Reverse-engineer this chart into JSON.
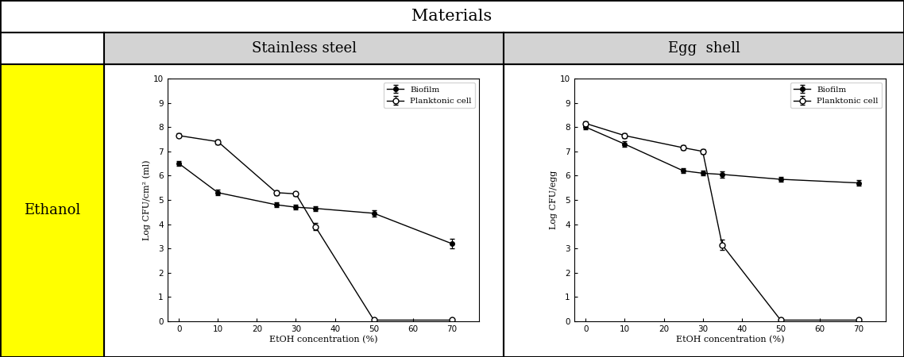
{
  "title": "Materials",
  "col1_header": "Stainless steel",
  "col2_header": "Egg  shell",
  "row_header": "Ethanol",
  "ss_biofilm_x": [
    0,
    10,
    25,
    30,
    35,
    50,
    70
  ],
  "ss_biofilm_y": [
    6.5,
    5.3,
    4.8,
    4.7,
    4.65,
    4.45,
    3.2
  ],
  "ss_biofilm_err": [
    0.1,
    0.12,
    0.1,
    0.1,
    0.1,
    0.12,
    0.2
  ],
  "ss_planktonic_x": [
    0,
    10,
    25,
    30,
    35,
    50,
    70
  ],
  "ss_planktonic_y": [
    7.65,
    7.4,
    5.3,
    5.25,
    3.9,
    0.05,
    0.05
  ],
  "ss_planktonic_err": [
    0.08,
    0.1,
    0.1,
    0.08,
    0.15,
    0.05,
    0.05
  ],
  "ss_ylabel": "Log CFU/cm² (ml)",
  "es_biofilm_x": [
    0,
    10,
    25,
    30,
    35,
    50,
    70
  ],
  "es_biofilm_y": [
    8.0,
    7.3,
    6.2,
    6.1,
    6.05,
    5.85,
    5.7
  ],
  "es_biofilm_err": [
    0.1,
    0.12,
    0.1,
    0.1,
    0.12,
    0.1,
    0.12
  ],
  "es_planktonic_x": [
    0,
    10,
    25,
    30,
    35,
    50,
    70
  ],
  "es_planktonic_y": [
    8.15,
    7.65,
    7.15,
    7.0,
    3.15,
    0.05,
    0.05
  ],
  "es_planktonic_err": [
    0.08,
    0.1,
    0.1,
    0.1,
    0.2,
    0.05,
    0.05
  ],
  "es_ylabel": "Log CFU/egg",
  "xlabel": "EtOH concentration (%)",
  "ylim": [
    0,
    10
  ],
  "yticks": [
    0,
    1,
    2,
    3,
    4,
    5,
    6,
    7,
    8,
    9,
    10
  ],
  "xticks": [
    0,
    10,
    20,
    30,
    40,
    50,
    60,
    70
  ],
  "biofilm_label": "Biofilm",
  "planktonic_label": "Planktonic cell",
  "header_bg": "#d3d3d3",
  "row_bg": "#ffff00",
  "table_border": "#000000",
  "plot_bg": "#ffffff",
  "title_fontsize": 15,
  "header_fontsize": 13,
  "row_fontsize": 13
}
